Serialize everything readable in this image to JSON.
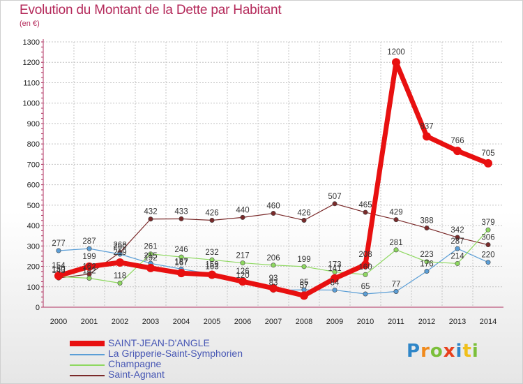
{
  "chart_data": {
    "type": "line",
    "title": "Evolution du Montant de la Dette par Habitant",
    "ylabel": "(en €)",
    "x": [
      "2000",
      "2001",
      "2002",
      "2003",
      "2004",
      "2005",
      "2006",
      "2007",
      "2008",
      "2009",
      "2010",
      "2011",
      "2012",
      "2013",
      "2014"
    ],
    "ylim": [
      0,
      1300
    ],
    "yticks": [
      0,
      100,
      200,
      300,
      400,
      500,
      600,
      700,
      800,
      900,
      1000,
      1100,
      1200,
      1300
    ],
    "grid": true,
    "legend_position": "bottom-left",
    "series": [
      {
        "name": "SAINT-JEAN-D'ANGLE",
        "color": "#e81010",
        "values": [
          154,
          199,
          219,
          192,
          167,
          159,
          126,
          93,
          57,
          141,
          208,
          1200,
          837,
          766,
          705
        ]
      },
      {
        "name": "La Gripperie-Saint-Symphorien",
        "color": "#5b9ed6",
        "values": [
          277,
          287,
          260,
          215,
          187,
          163,
          120,
          83,
          85,
          84,
          65,
          77,
          176,
          287,
          220
        ]
      },
      {
        "name": "Champagne",
        "color": "#8ed860",
        "values": [
          150,
          142,
          118,
          261,
          246,
          232,
          217,
          206,
          199,
          173,
          160,
          281,
          223,
          214,
          379
        ]
      },
      {
        "name": "Saint-Agnant",
        "color": "#7a2a2a",
        "values": [
          143,
          162,
          268,
          432,
          433,
          426,
          440,
          460,
          426,
          507,
          465,
          429,
          388,
          342,
          306
        ]
      }
    ]
  },
  "logo": {
    "text": "Proxiti"
  }
}
